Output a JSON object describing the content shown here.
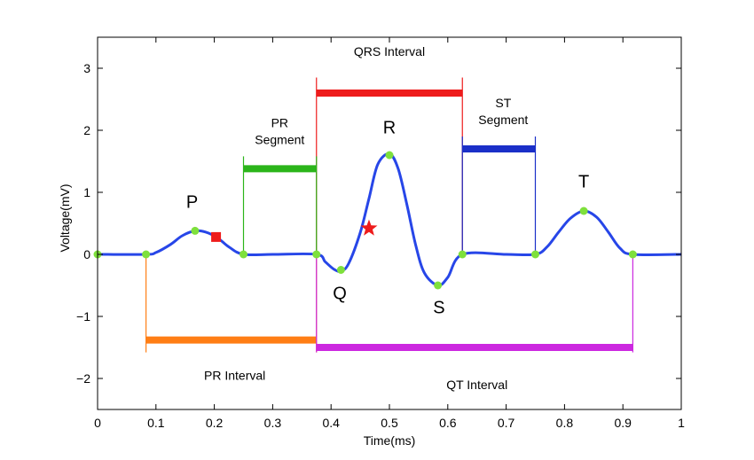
{
  "chart_data": {
    "type": "line",
    "xlabel": "Time(ms)",
    "ylabel": "Voltage(mV)",
    "xlim": [
      0,
      1
    ],
    "ylim": [
      -2.5,
      3.5
    ],
    "xticks": [
      "0",
      "0.1",
      "0.2",
      "0.3",
      "0.4",
      "0.5",
      "0.6",
      "0.7",
      "0.8",
      "0.9",
      "1"
    ],
    "yticks": [
      "−2",
      "−1",
      "0",
      "1",
      "2",
      "3"
    ],
    "grid": false,
    "line_color": "#2746e8",
    "series": [
      {
        "x": [
          0,
          0.083,
          0.1,
          0.125,
          0.145,
          0.167,
          0.185,
          0.205,
          0.225,
          0.25,
          0.3,
          0.375,
          0.39,
          0.405,
          0.417,
          0.43,
          0.45,
          0.465,
          0.48,
          0.5,
          0.515,
          0.53,
          0.545,
          0.56,
          0.583,
          0.6,
          0.625,
          0.7,
          0.75,
          0.77,
          0.79,
          0.81,
          0.833,
          0.855,
          0.875,
          0.895,
          0.917,
          1.0
        ],
        "y": [
          0,
          0,
          0.03,
          0.16,
          0.3,
          0.38,
          0.36,
          0.27,
          0.12,
          0,
          0,
          0,
          -0.12,
          -0.24,
          -0.27,
          -0.15,
          0.35,
          0.9,
          1.45,
          1.62,
          1.38,
          0.8,
          0.15,
          -0.3,
          -0.5,
          -0.37,
          0,
          0,
          0,
          0.12,
          0.36,
          0.58,
          0.7,
          0.6,
          0.36,
          0.1,
          0,
          0
        ]
      }
    ],
    "marker_points": {
      "color": "#7ee03c",
      "x": [
        0,
        0.083,
        0.167,
        0.25,
        0.375,
        0.417,
        0.5,
        0.583,
        0.625,
        0.75,
        0.833,
        0.917
      ],
      "y": [
        0,
        0,
        0.38,
        0,
        0,
        -0.25,
        1.6,
        -0.5,
        0,
        0,
        0.7,
        0
      ]
    },
    "special_markers": [
      {
        "name": "square-marker",
        "shape": "square",
        "x": 0.203,
        "y": 0.28,
        "color": "#ee1c1c"
      },
      {
        "name": "star-marker",
        "shape": "star",
        "x": 0.465,
        "y": 0.42,
        "color": "#ee1c1c"
      }
    ],
    "wave_labels": [
      {
        "text": "P",
        "x": 0.162,
        "y": 0.75
      },
      {
        "text": "Q",
        "x": 0.415,
        "y": -0.72
      },
      {
        "text": "R",
        "x": 0.5,
        "y": 1.95
      },
      {
        "text": "S",
        "x": 0.585,
        "y": -0.95
      },
      {
        "text": "T",
        "x": 0.833,
        "y": 1.08
      }
    ],
    "intervals": [
      {
        "name": "qrs-interval",
        "label": "QRS Interval",
        "x0": 0.375,
        "x1": 0.625,
        "y": 2.6,
        "color": "#ee1c1c",
        "label_x": 0.5,
        "label_y": 3.2,
        "v_from": 0.0,
        "v_to": 2.85
      },
      {
        "name": "pr-segment",
        "label": "PR Segment",
        "x0": 0.25,
        "x1": 0.375,
        "y": 1.38,
        "color": "#2bb51a",
        "label_x": 0.312,
        "label_y": 2.05,
        "v_from": 0.0,
        "v_to": 1.58
      },
      {
        "name": "st-segment",
        "label": "ST Segment",
        "x0": 0.625,
        "x1": 0.75,
        "y": 1.7,
        "color": "#1a2fc8",
        "label_x": 0.695,
        "label_y": 2.37,
        "v_from": 0.0,
        "v_to": 1.9
      },
      {
        "name": "pr-interval",
        "label": "PR Interval",
        "x0": 0.083,
        "x1": 0.375,
        "y": -1.38,
        "color": "#ff7e15",
        "label_x": 0.235,
        "label_y": -2.02,
        "v_from": 0.0,
        "v_to": -1.58
      },
      {
        "name": "qt-interval",
        "label": "QT Interval",
        "x0": 0.375,
        "x1": 0.917,
        "y": -1.5,
        "color": "#cc28e0",
        "label_x": 0.65,
        "label_y": -2.17,
        "v_from": 0.0,
        "v_to": -1.58
      }
    ]
  }
}
